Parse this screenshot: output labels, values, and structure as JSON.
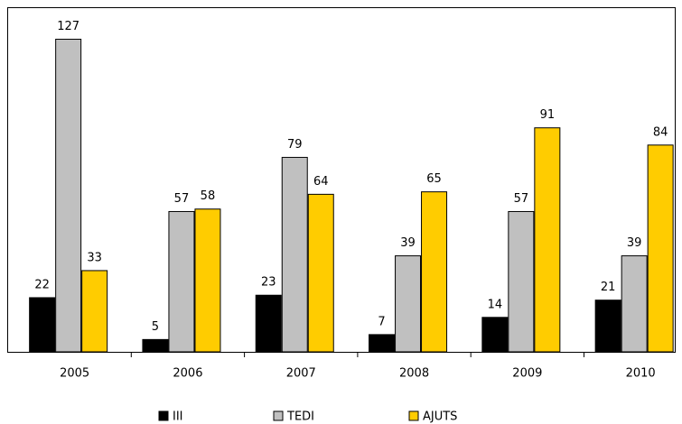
{
  "chart_data": {
    "type": "bar",
    "categories": [
      "2005",
      "2006",
      "2007",
      "2008",
      "2009",
      "2010"
    ],
    "series": [
      {
        "name": "III",
        "color": "#000000",
        "values": [
          22,
          5,
          23,
          7,
          14,
          21
        ]
      },
      {
        "name": "TEDI",
        "color": "#c0c0c0",
        "values": [
          127,
          57,
          79,
          39,
          57,
          39
        ]
      },
      {
        "name": "AJUTS",
        "color": "#ffcc00",
        "values": [
          33,
          58,
          64,
          65,
          91,
          84
        ]
      }
    ],
    "ylim": [
      0,
      140
    ]
  }
}
